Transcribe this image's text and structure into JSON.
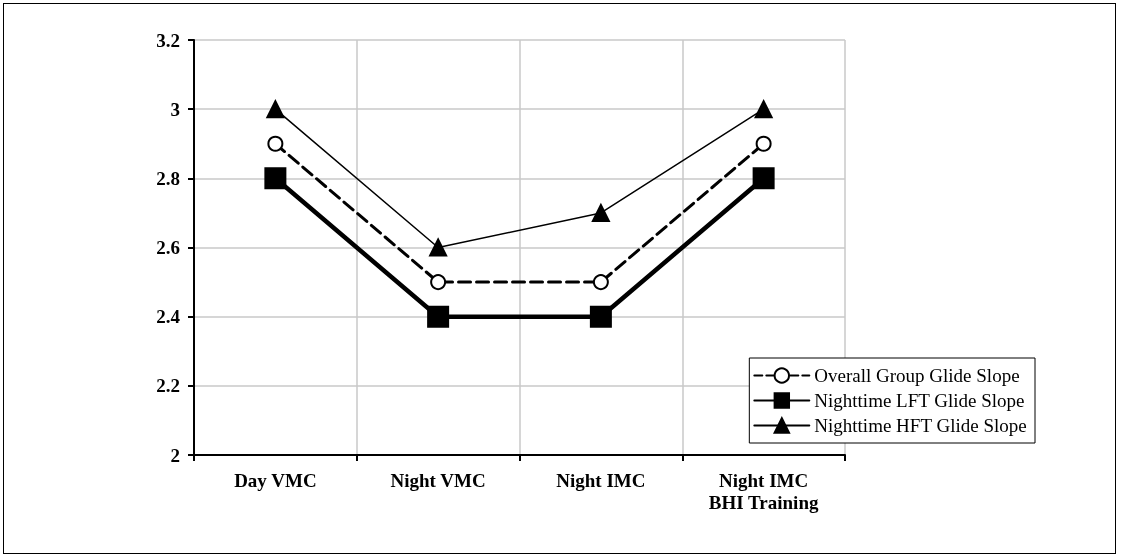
{
  "chart_data": {
    "type": "line",
    "categories": [
      "Day VMC",
      "Night VMC",
      "Night IMC",
      "Night IMC\nBHI Training"
    ],
    "series": [
      {
        "name": "Overall Group Glide Slope",
        "color": "#000000",
        "values": [
          2.9,
          2.5,
          2.5,
          2.9
        ],
        "marker": "circle",
        "line_style": "dashed"
      },
      {
        "name": "Nighttime LFT Glide Slope",
        "color": "#000000",
        "values": [
          2.8,
          2.4,
          2.4,
          2.8
        ],
        "marker": "square",
        "line_style": "solid"
      },
      {
        "name": "Nighttime HFT Glide Slope",
        "color": "#000000",
        "values": [
          3,
          2.6,
          2.7,
          3
        ],
        "marker": "triangle",
        "line_style": "solid"
      }
    ],
    "ylim": [
      2,
      3.2
    ],
    "yticks": [
      2,
      2.2,
      2.4,
      2.6,
      2.8,
      3,
      3.2
    ],
    "grid": true,
    "legend": "bottom right"
  }
}
